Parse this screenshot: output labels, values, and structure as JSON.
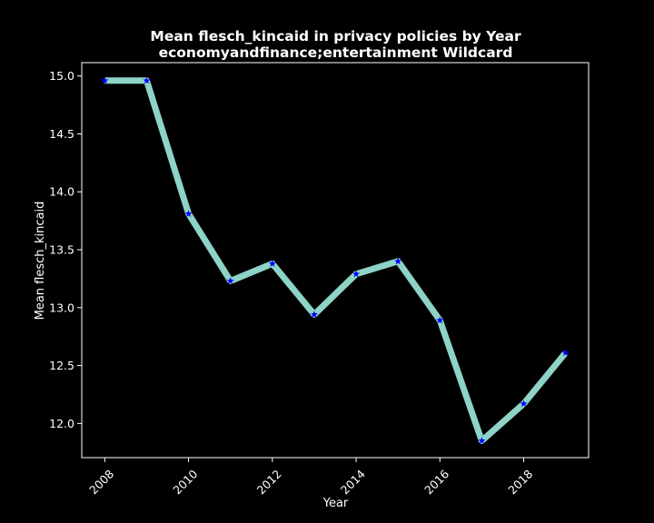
{
  "chart_data": {
    "type": "line",
    "title": "Mean flesch_kincaid in privacy policies by Year",
    "subtitle": "economyandfinance;entertainment Wildcard",
    "xlabel": "Year",
    "ylabel": "Mean flesch_kincaid",
    "x": [
      2008,
      2009,
      2010,
      2011,
      2012,
      2013,
      2014,
      2015,
      2016,
      2017,
      2018,
      2019
    ],
    "series": [
      {
        "values": [
          14.96,
          14.96,
          13.81,
          13.23,
          13.38,
          12.94,
          13.29,
          13.4,
          12.89,
          11.85,
          12.17,
          12.61
        ],
        "line_color": "#8dd3c7",
        "marker_color": "#0000ff",
        "marker": "star"
      }
    ],
    "xticks": [
      2008,
      2010,
      2012,
      2014,
      2016,
      2018
    ],
    "xtick_labels": [
      "2008",
      "2010",
      "2012",
      "2014",
      "2016",
      "2018"
    ],
    "yticks": [
      12.0,
      12.5,
      13.0,
      13.5,
      14.0,
      14.5,
      15.0
    ],
    "ytick_labels": [
      "12.0",
      "12.5",
      "13.0",
      "13.5",
      "14.0",
      "14.5",
      "15.0"
    ],
    "xlim": [
      2007.45,
      2019.55
    ],
    "ylim": [
      11.705,
      15.115
    ],
    "grid": false,
    "background": "#000000",
    "foreground": "#ffffff"
  }
}
